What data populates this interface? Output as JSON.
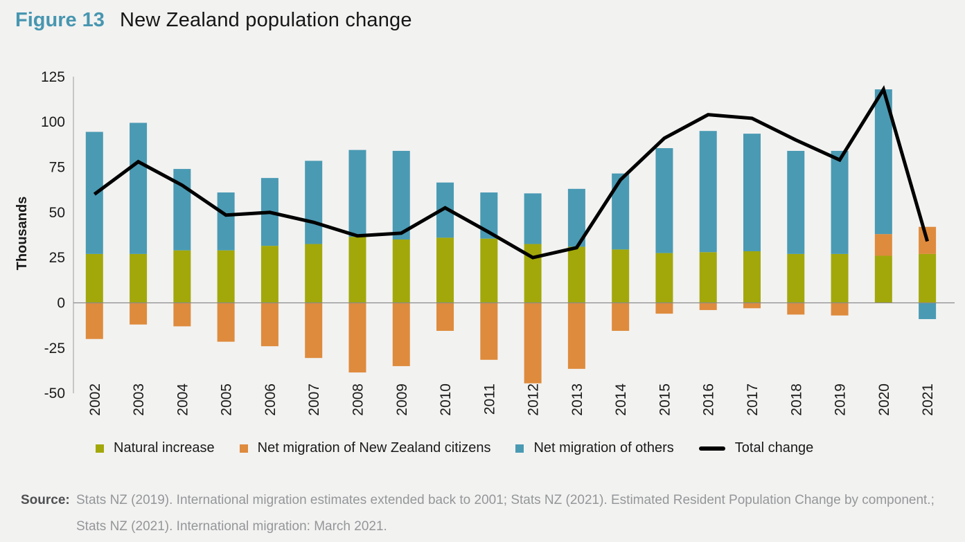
{
  "header": {
    "figure_label": "Figure 13",
    "title": "New Zealand population change"
  },
  "colors": {
    "background": "#f2f2f1",
    "figure_label": "#4796b0",
    "natural_increase": "#a2a80a",
    "net_migration_nz_citizens": "#de8b3d",
    "net_migration_others": "#4a9ab3",
    "total_change_line": "#000000",
    "zero_line": "#8b8b8b",
    "axis_line": "#9b9b9b"
  },
  "chart_data": {
    "type": "bar",
    "subtype": "stacked-bars-with-line-overlay",
    "title": "New Zealand population change",
    "xlabel": "",
    "ylabel": "Thousands",
    "ylim": [
      -50,
      125
    ],
    "ytick_step": 25,
    "ytick_labels": [
      "125",
      "100",
      "75",
      "50",
      "25",
      "0",
      "-25",
      "-50"
    ],
    "grid": "zero-line-only",
    "legend_position": "bottom",
    "categories": [
      "2002",
      "2003",
      "2004",
      "2005",
      "2006",
      "2007",
      "2008",
      "2009",
      "2010",
      "2011",
      "2012",
      "2013",
      "2014",
      "2015",
      "2016",
      "2017",
      "2018",
      "2019",
      "2020",
      "2021"
    ],
    "series": [
      {
        "name": "Natural increase",
        "color": "#a2a80a",
        "values": [
          27,
          27,
          29,
          29,
          31.5,
          32.5,
          36.5,
          35,
          36,
          35.5,
          32.5,
          31,
          29.5,
          27.5,
          28,
          28.5,
          27,
          27,
          26,
          27
        ]
      },
      {
        "name": "Net migration of New Zealand citizens",
        "color": "#de8b3d",
        "values": [
          -20,
          -12,
          -13,
          -21.5,
          -24,
          -30.5,
          -38.5,
          -35,
          -15.5,
          -31.5,
          -44.5,
          -36.5,
          -15.5,
          -6,
          -4,
          -3,
          -6.5,
          -7,
          12,
          15
        ]
      },
      {
        "name": "Net migration of others",
        "color": "#4a9ab3",
        "values": [
          67.5,
          72.5,
          45,
          32,
          37.5,
          46,
          48,
          49,
          30.5,
          25.5,
          28,
          32,
          42,
          58,
          67,
          65,
          57,
          57,
          80,
          -9
        ]
      }
    ],
    "line_series": {
      "name": "Total change",
      "color": "#000000",
      "values": [
        60,
        78,
        65,
        48.5,
        50,
        44.5,
        37,
        38.5,
        52.5,
        39,
        25,
        30.5,
        68,
        91,
        104,
        102,
        90,
        79,
        118,
        34
      ]
    }
  },
  "source": {
    "label": "Source:",
    "text": "Stats NZ (2019). International migration estimates extended back to 2001; Stats NZ (2021). Estimated Resident Population Change by component.; Stats NZ (2021). International migration: March 2021."
  }
}
